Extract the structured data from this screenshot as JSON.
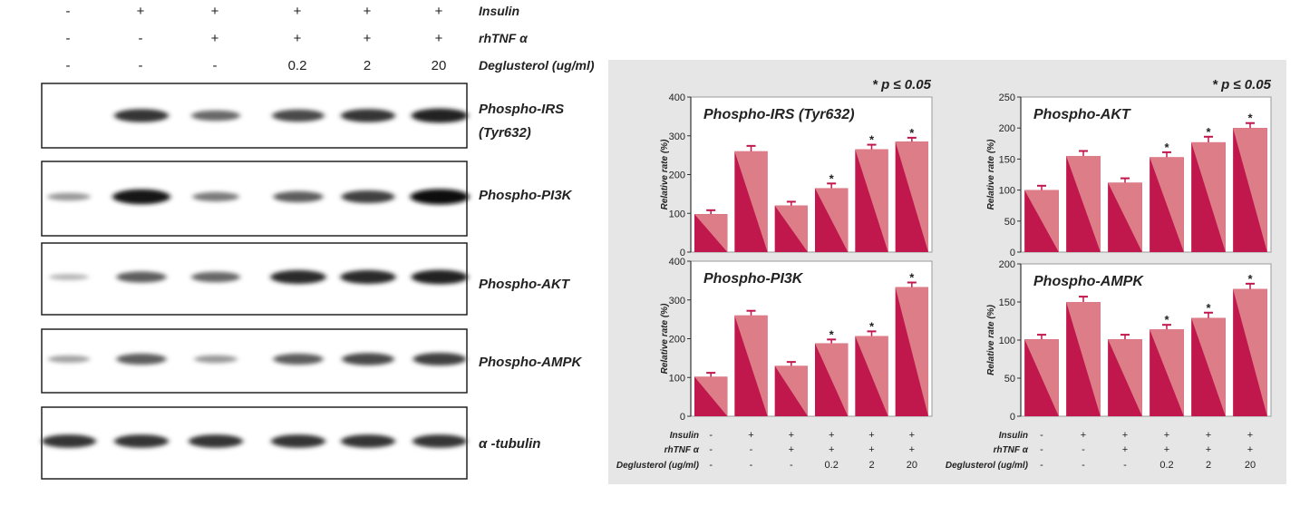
{
  "blot": {
    "conditions": {
      "rows": [
        {
          "label": "Insulin",
          "values": [
            "-",
            "+",
            "+",
            "+",
            "+",
            "+"
          ]
        },
        {
          "label": "rhTNF α",
          "values": [
            "-",
            "-",
            "+",
            "+",
            "+",
            "+"
          ]
        },
        {
          "label": "Deglusterol (ug/ml)",
          "values": [
            "-",
            "-",
            "-",
            "0.2",
            "2",
            "20"
          ]
        }
      ]
    },
    "proteins": [
      {
        "name": "Phospho-IRS",
        "name2": "(Tyr632)",
        "intensity": [
          0.0,
          0.8,
          0.55,
          0.7,
          0.8,
          0.9
        ]
      },
      {
        "name": "Phospho-PI3K",
        "name2": "",
        "intensity": [
          0.3,
          0.95,
          0.45,
          0.6,
          0.75,
          1.0
        ]
      },
      {
        "name": "Phospho-AKT",
        "name2": "",
        "intensity": [
          0.15,
          0.6,
          0.55,
          0.85,
          0.85,
          0.9
        ]
      },
      {
        "name": "Phospho-AMPK",
        "name2": "",
        "intensity": [
          0.25,
          0.6,
          0.3,
          0.6,
          0.7,
          0.75
        ]
      },
      {
        "name": "α -tubulin",
        "name2": "",
        "intensity": [
          0.8,
          0.8,
          0.8,
          0.8,
          0.8,
          0.8
        ]
      }
    ]
  },
  "significance_note": "* p ≤ 0.05",
  "ylabel": "Relative rate (%)",
  "colors": {
    "bar_dark": "#c0174c",
    "bar_light": "#dd7d88",
    "panel_bg": "#e6e6e6"
  },
  "x_conditions": {
    "rows": [
      {
        "label": "Insulin",
        "values": [
          "-",
          "+",
          "+",
          "+",
          "+",
          "+"
        ]
      },
      {
        "label": "rhTNF α",
        "values": [
          "-",
          "-",
          "+",
          "+",
          "+",
          "+"
        ]
      },
      {
        "label": "Deglusterol (ug/ml)",
        "values": [
          "-",
          "-",
          "-",
          "0.2",
          "2",
          "20"
        ]
      }
    ]
  },
  "chart_data": [
    {
      "type": "bar",
      "title": "Phospho-IRS (Tyr632)",
      "ylabel": "Relative rate (%)",
      "ylim": [
        0,
        400
      ],
      "yticks": [
        0,
        100,
        200,
        300,
        400
      ],
      "values": [
        98,
        260,
        120,
        165,
        265,
        285
      ],
      "errors": [
        10,
        14,
        10,
        12,
        12,
        10
      ],
      "significant": [
        false,
        false,
        false,
        true,
        true,
        true
      ]
    },
    {
      "type": "bar",
      "title": "Phospho-AKT",
      "ylabel": "Relative rate (%)",
      "ylim": [
        0,
        250
      ],
      "yticks": [
        0,
        50,
        100,
        150,
        200,
        250
      ],
      "values": [
        100,
        155,
        112,
        153,
        177,
        200
      ],
      "errors": [
        7,
        8,
        7,
        8,
        9,
        8
      ],
      "significant": [
        false,
        false,
        false,
        true,
        true,
        true
      ]
    },
    {
      "type": "bar",
      "title": "Phospho-PI3K",
      "ylabel": "Relative rate (%)",
      "ylim": [
        0,
        400
      ],
      "yticks": [
        0,
        100,
        200,
        300,
        400
      ],
      "values": [
        102,
        260,
        130,
        188,
        207,
        333
      ],
      "errors": [
        10,
        12,
        10,
        10,
        12,
        12
      ],
      "significant": [
        false,
        false,
        false,
        true,
        true,
        true
      ]
    },
    {
      "type": "bar",
      "title": "Phospho-AMPK",
      "ylabel": "Relative rate (%)",
      "ylim": [
        0,
        200
      ],
      "yticks": [
        0,
        50,
        100,
        150,
        200
      ],
      "values": [
        101,
        150,
        101,
        114,
        129,
        167
      ],
      "errors": [
        6,
        7,
        6,
        6,
        7,
        7
      ],
      "significant": [
        false,
        false,
        false,
        true,
        true,
        true
      ]
    }
  ]
}
